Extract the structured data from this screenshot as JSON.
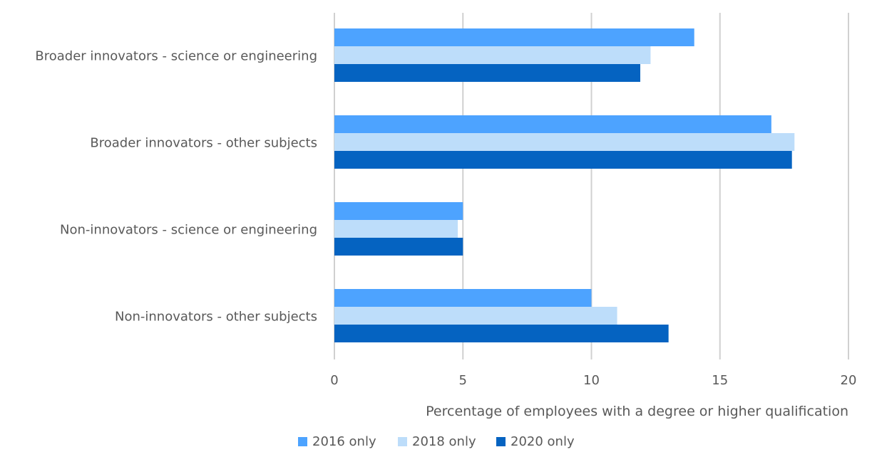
{
  "chart_data": {
    "type": "bar",
    "orientation": "horizontal",
    "categories": [
      "Broader innovators - science or engineering",
      "Broader innovators - other subjects",
      "Non-innovators - science or engineering",
      "Non-innovators - other subjects"
    ],
    "series": [
      {
        "name": "2016 only",
        "color": "#4da3ff",
        "values": [
          14.0,
          17.0,
          5.0,
          10.0
        ]
      },
      {
        "name": "2018 only",
        "color": "#bdddfa",
        "values": [
          12.3,
          17.9,
          4.8,
          11.0
        ]
      },
      {
        "name": "2020 only",
        "color": "#0563c1",
        "values": [
          11.9,
          17.8,
          5.0,
          13.0
        ]
      }
    ],
    "xlabel": "Percentage of employees with a degree or higher qualification",
    "ylabel": "",
    "title": "",
    "xlim": [
      0,
      20
    ],
    "xticks": [
      0,
      5,
      10,
      15,
      20
    ],
    "grid": "vertical",
    "legend_position": "bottom"
  }
}
